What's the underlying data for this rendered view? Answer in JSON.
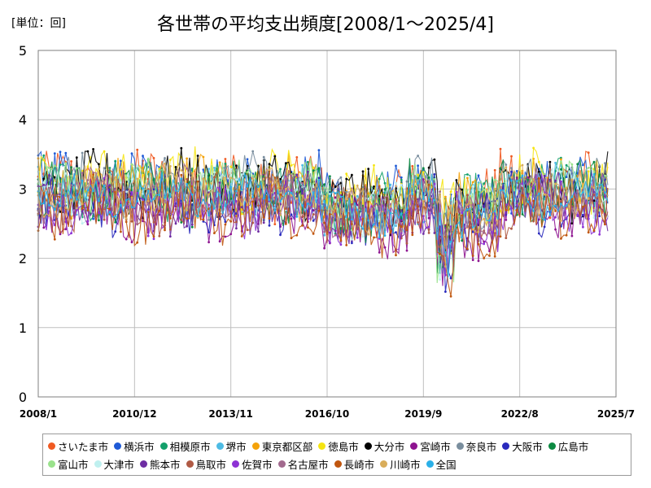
{
  "unit_label": "[単位：回]",
  "chart_data": {
    "type": "line",
    "title": "各世帯の平均支出頻度[2008/1～2025/4]",
    "xlabel": "",
    "ylabel": "",
    "ylim": [
      0,
      5
    ],
    "yticks": [
      0,
      1,
      2,
      3,
      4,
      5
    ],
    "xlim": [
      "2008/1",
      "2025/7"
    ],
    "xtick_labels": [
      "2008/1",
      "2010/12",
      "2013/11",
      "2016/10",
      "2019/9",
      "2022/8",
      "2025/7"
    ],
    "grid": true,
    "legend_position": "bottom",
    "series": [
      {
        "name": "さいたま市",
        "color": "#f05a22",
        "base": 3.05,
        "amp": 0.42
      },
      {
        "name": "横浜市",
        "color": "#1e5ad6",
        "base": 3.05,
        "amp": 0.4
      },
      {
        "name": "相模原市",
        "color": "#13a06b",
        "base": 3.0,
        "amp": 0.36
      },
      {
        "name": "堺市",
        "color": "#4dbbe4",
        "base": 2.95,
        "amp": 0.32
      },
      {
        "name": "東京都区部",
        "color": "#f4a20a",
        "base": 3.05,
        "amp": 0.34
      },
      {
        "name": "徳島市",
        "color": "#f5e412",
        "base": 3.1,
        "amp": 0.4
      },
      {
        "name": "大分市",
        "color": "#000000",
        "base": 3.05,
        "amp": 0.4
      },
      {
        "name": "宮崎市",
        "color": "#8e1490",
        "base": 2.7,
        "amp": 0.36
      },
      {
        "name": "奈良市",
        "color": "#7a8e9e",
        "base": 3.05,
        "amp": 0.36
      },
      {
        "name": "大阪市",
        "color": "#2a2abd",
        "base": 2.8,
        "amp": 0.36
      },
      {
        "name": "広島市",
        "color": "#0c8a42",
        "base": 2.95,
        "amp": 0.36
      },
      {
        "name": "富山市",
        "color": "#9ae28c",
        "base": 3.0,
        "amp": 0.32
      },
      {
        "name": "大津市",
        "color": "#bff0ef",
        "base": 2.9,
        "amp": 0.32
      },
      {
        "name": "熊本市",
        "color": "#6e2da3",
        "base": 2.8,
        "amp": 0.34
      },
      {
        "name": "鳥取市",
        "color": "#b05a44",
        "base": 2.8,
        "amp": 0.36
      },
      {
        "name": "佐賀市",
        "color": "#8d32d4",
        "base": 2.75,
        "amp": 0.34
      },
      {
        "name": "名古屋市",
        "color": "#a26a8e",
        "base": 2.9,
        "amp": 0.32
      },
      {
        "name": "長崎市",
        "color": "#c0560e",
        "base": 2.7,
        "amp": 0.4
      },
      {
        "name": "川崎市",
        "color": "#d9ad5a",
        "base": 2.95,
        "amp": 0.32
      },
      {
        "name": "全国",
        "color": "#2ab0e8",
        "base": 2.9,
        "amp": 0.22
      }
    ]
  }
}
